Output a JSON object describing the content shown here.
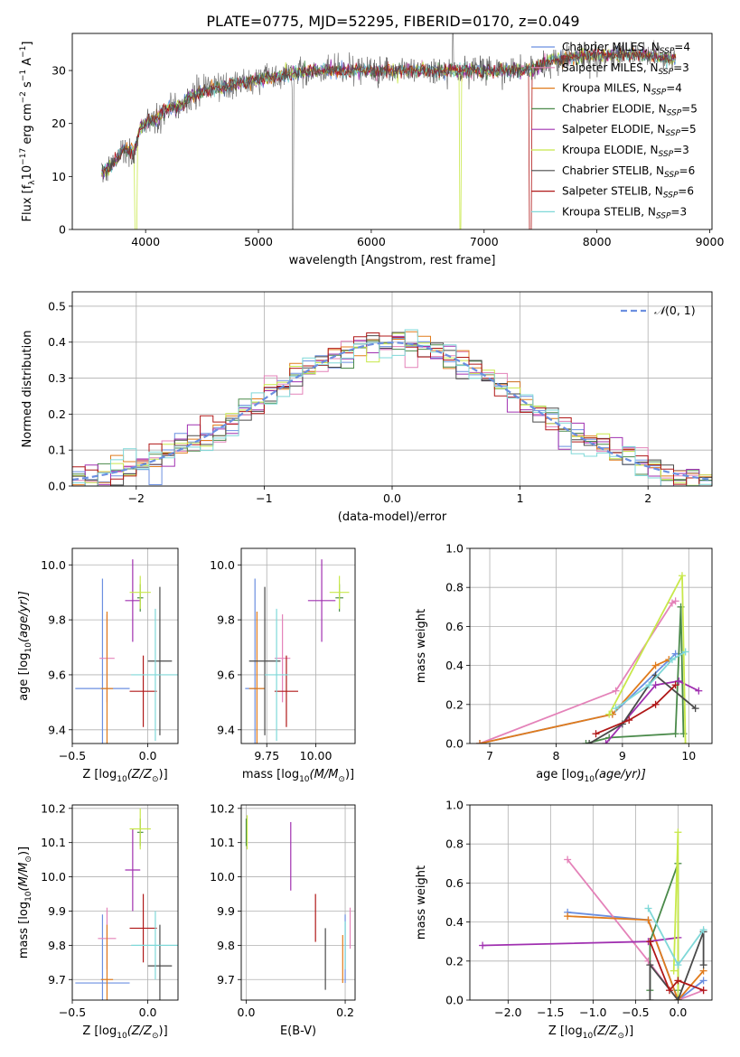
{
  "figure": {
    "title": "PLATE=0775, MJD=52295, FIBERID=0170, z=0.049"
  },
  "series_colors": {
    "Chabrier MILES": "#6b8fe0",
    "Salpeter MILES": "#e482b9",
    "Kroupa MILES": "#e07b1c",
    "Chabrier ELODIE": "#4a8a4a",
    "Salpeter ELODIE": "#a030b0",
    "Kroupa ELODIE": "#c8e84a",
    "Chabrier STELIB": "#4a4a4a",
    "Salpeter STELIB": "#b01818",
    "Kroupa STELIB": "#7fd8d8"
  },
  "chart_data": [
    {
      "id": "spectrum",
      "type": "line",
      "xlabel": "wavelength [Angstrom, rest frame]",
      "ylabel": "Flux [f",
      "xlim": [
        3350,
        9020
      ],
      "ylim": [
        0,
        37
      ],
      "xticks": [
        4000,
        5000,
        6000,
        7000,
        8000,
        9000
      ],
      "yticks": [
        0,
        10,
        20,
        30
      ],
      "grid": false,
      "legend_position": "top-right",
      "legend": [
        {
          "label": "Chabrier MILES, N",
          "n": "4",
          "color": "#6b8fe0"
        },
        {
          "label": "Salpeter MILES, N",
          "n": "3",
          "color": "#e482b9"
        },
        {
          "label": "Kroupa MILES, N",
          "n": "4",
          "color": "#e07b1c"
        },
        {
          "label": "Chabrier ELODIE, N",
          "n": "5",
          "color": "#4a8a4a"
        },
        {
          "label": "Salpeter ELODIE, N",
          "n": "5",
          "color": "#a030b0"
        },
        {
          "label": "Kroupa ELODIE, N",
          "n": "3",
          "color": "#c8e84a"
        },
        {
          "label": "Chabrier STELIB, N",
          "n": "6",
          "color": "#4a4a4a"
        },
        {
          "label": "Salpeter STELIB, N",
          "n": "6",
          "color": "#b01818"
        },
        {
          "label": "Kroupa STELIB, N",
          "n": "3",
          "color": "#7fd8d8"
        }
      ],
      "continuum": [
        [
          3610,
          11
        ],
        [
          3700,
          12
        ],
        [
          3800,
          15
        ],
        [
          3900,
          15
        ],
        [
          3950,
          19
        ],
        [
          4000,
          20
        ],
        [
          4100,
          21
        ],
        [
          4200,
          23
        ],
        [
          4300,
          23
        ],
        [
          4400,
          25
        ],
        [
          4500,
          26
        ],
        [
          4700,
          27
        ],
        [
          4900,
          28
        ],
        [
          5200,
          29
        ],
        [
          5500,
          30
        ],
        [
          6000,
          30
        ],
        [
          6500,
          30
        ],
        [
          7000,
          30
        ],
        [
          7400,
          30
        ],
        [
          7600,
          32
        ],
        [
          8000,
          33
        ],
        [
          8400,
          33
        ],
        [
          8700,
          32
        ]
      ]
    },
    {
      "id": "residual-histogram",
      "type": "histogram",
      "xlabel": "(data-model)/error",
      "ylabel": "Normed distribution",
      "xlim": [
        -2.5,
        2.5
      ],
      "ylim": [
        0,
        0.54
      ],
      "xticks": [
        -2,
        -1,
        0,
        1,
        2
      ],
      "yticks": [
        0.0,
        0.1,
        0.2,
        0.3,
        0.4,
        0.5
      ],
      "grid": true,
      "legend_position": "top-right",
      "legend": [
        {
          "label": "(0, 1)",
          "color": "#6b8fe0",
          "style": "dashed"
        }
      ],
      "bin_width": 0.1,
      "gaussian": {
        "mean": 0,
        "sigma": 1
      }
    },
    {
      "id": "age-vs-Z",
      "type": "errorbar",
      "xlabel": "Z [log",
      "ylabel": "age  [log",
      "xlim": [
        -0.5,
        0.2
      ],
      "ylim": [
        9.35,
        10.06
      ],
      "xticks": [
        -0.5,
        0.0
      ],
      "yticks": [
        9.4,
        9.6,
        9.8,
        10.0
      ],
      "grid": true,
      "points": [
        {
          "series": "Chabrier MILES",
          "x": -0.3,
          "xerr": 0.18,
          "y": 9.55,
          "yerr": 0.4
        },
        {
          "series": "Salpeter MILES",
          "x": -0.27,
          "xerr": 0.05,
          "y": 9.66,
          "yerr": 0.16
        },
        {
          "series": "Kroupa MILES",
          "x": -0.27,
          "xerr": 0.04,
          "y": 9.55,
          "yerr": 0.28
        },
        {
          "series": "Chabrier ELODIE",
          "x": -0.05,
          "xerr": 0.02,
          "y": 9.88,
          "yerr": 0.05
        },
        {
          "series": "Salpeter ELODIE",
          "x": -0.1,
          "xerr": 0.05,
          "y": 9.87,
          "yerr": 0.15
        },
        {
          "series": "Kroupa ELODIE",
          "x": -0.05,
          "xerr": 0.07,
          "y": 9.9,
          "yerr": 0.06
        },
        {
          "series": "Chabrier STELIB",
          "x": 0.08,
          "xerr": 0.08,
          "y": 9.65,
          "yerr": 0.27
        },
        {
          "series": "Salpeter STELIB",
          "x": -0.03,
          "xerr": 0.09,
          "y": 9.54,
          "yerr": 0.13
        },
        {
          "series": "Kroupa STELIB",
          "x": 0.05,
          "xerr": 0.16,
          "y": 9.6,
          "yerr": 0.24
        }
      ]
    },
    {
      "id": "age-vs-mass",
      "type": "errorbar",
      "xlabel": "mass [log",
      "ylabel": "",
      "xlim": [
        9.62,
        10.2
      ],
      "ylim": [
        9.35,
        10.06
      ],
      "xticks": [
        9.75,
        10.0
      ],
      "xticklabels": [
        "9.75",
        "10.00"
      ],
      "yticks": [
        9.4,
        9.6,
        9.8,
        10.0
      ],
      "grid": true,
      "points": [
        {
          "series": "Chabrier MILES",
          "x": 9.69,
          "xerr": 0.05,
          "y": 9.55,
          "yerr": 0.4
        },
        {
          "series": "Salpeter MILES",
          "x": 9.83,
          "xerr": 0.04,
          "y": 9.66,
          "yerr": 0.16
        },
        {
          "series": "Kroupa MILES",
          "x": 9.7,
          "xerr": 0.04,
          "y": 9.55,
          "yerr": 0.28
        },
        {
          "series": "Chabrier ELODIE",
          "x": 10.12,
          "xerr": 0.02,
          "y": 9.88,
          "yerr": 0.05
        },
        {
          "series": "Salpeter ELODIE",
          "x": 10.03,
          "xerr": 0.07,
          "y": 9.87,
          "yerr": 0.15
        },
        {
          "series": "Kroupa ELODIE",
          "x": 10.12,
          "xerr": 0.05,
          "y": 9.9,
          "yerr": 0.06
        },
        {
          "series": "Chabrier STELIB",
          "x": 9.74,
          "xerr": 0.08,
          "y": 9.65,
          "yerr": 0.27
        },
        {
          "series": "Salpeter STELIB",
          "x": 9.85,
          "xerr": 0.06,
          "y": 9.54,
          "yerr": 0.13
        },
        {
          "series": "Kroupa STELIB",
          "x": 9.8,
          "xerr": 0.06,
          "y": 9.6,
          "yerr": 0.24
        }
      ]
    },
    {
      "id": "weight-vs-age",
      "type": "line",
      "xlabel": "age  [log",
      "ylabel": "mass weight",
      "xlim": [
        6.7,
        10.35
      ],
      "ylim": [
        0,
        1.0
      ],
      "xticks": [
        7,
        8,
        9,
        10
      ],
      "yticks": [
        0.0,
        0.2,
        0.4,
        0.6,
        0.8,
        1.0
      ],
      "grid": true,
      "series": [
        {
          "name": "Chabrier MILES",
          "points": [
            [
              6.85,
              0.0
            ],
            [
              8.85,
              0.15
            ],
            [
              9.8,
              0.46
            ],
            [
              9.85,
              0.46
            ]
          ]
        },
        {
          "name": "Salpeter MILES",
          "points": [
            [
              6.85,
              0.0
            ],
            [
              8.9,
              0.27
            ],
            [
              9.75,
              0.72
            ],
            [
              9.8,
              0.73
            ]
          ]
        },
        {
          "name": "Kroupa MILES",
          "points": [
            [
              6.85,
              0.0
            ],
            [
              8.85,
              0.15
            ],
            [
              9.5,
              0.4
            ],
            [
              9.7,
              0.43
            ]
          ]
        },
        {
          "name": "Chabrier ELODIE",
          "points": [
            [
              8.45,
              0.0
            ],
            [
              8.8,
              0.03
            ],
            [
              9.8,
              0.05
            ],
            [
              9.88,
              0.7
            ],
            [
              9.92,
              0.05
            ]
          ]
        },
        {
          "name": "Salpeter ELODIE",
          "points": [
            [
              8.75,
              0.0
            ],
            [
              9.5,
              0.3
            ],
            [
              9.85,
              0.32
            ],
            [
              10.15,
              0.27
            ]
          ]
        },
        {
          "name": "Kroupa ELODIE",
          "points": [
            [
              8.8,
              0.15
            ],
            [
              9.9,
              0.86
            ],
            [
              9.95,
              0.0
            ]
          ]
        },
        {
          "name": "Chabrier STELIB",
          "points": [
            [
              8.5,
              0.0
            ],
            [
              9.0,
              0.1
            ],
            [
              9.5,
              0.35
            ],
            [
              10.1,
              0.18
            ]
          ]
        },
        {
          "name": "Salpeter STELIB",
          "points": [
            [
              8.6,
              0.05
            ],
            [
              9.1,
              0.12
            ],
            [
              9.5,
              0.2
            ],
            [
              9.8,
              0.3
            ]
          ]
        },
        {
          "name": "Kroupa STELIB",
          "points": [
            [
              8.9,
              0.18
            ],
            [
              9.4,
              0.3
            ],
            [
              9.75,
              0.43
            ],
            [
              9.95,
              0.47
            ]
          ]
        }
      ]
    },
    {
      "id": "mass-vs-Z",
      "type": "errorbar",
      "xlabel": "Z [log",
      "ylabel": "mass [log",
      "xlim": [
        -0.5,
        0.2
      ],
      "ylim": [
        9.64,
        10.21
      ],
      "xticks": [
        -0.5,
        0.0
      ],
      "yticks": [
        9.7,
        9.8,
        9.9,
        10.0,
        10.1,
        10.2
      ],
      "grid": true,
      "points": [
        {
          "series": "Chabrier MILES",
          "x": -0.3,
          "xerr": 0.18,
          "y": 9.69,
          "yerr": 0.2
        },
        {
          "series": "Salpeter MILES",
          "x": -0.27,
          "xerr": 0.06,
          "y": 9.82,
          "yerr": 0.09
        },
        {
          "series": "Kroupa MILES",
          "x": -0.27,
          "xerr": 0.04,
          "y": 9.7,
          "yerr": 0.16
        },
        {
          "series": "Chabrier ELODIE",
          "x": -0.05,
          "xerr": 0.02,
          "y": 10.13,
          "yerr": 0.04
        },
        {
          "series": "Salpeter ELODIE",
          "x": -0.1,
          "xerr": 0.05,
          "y": 10.02,
          "yerr": 0.12
        },
        {
          "series": "Kroupa ELODIE",
          "x": -0.05,
          "xerr": 0.07,
          "y": 10.14,
          "yerr": 0.06
        },
        {
          "series": "Chabrier STELIB",
          "x": 0.08,
          "xerr": 0.08,
          "y": 9.74,
          "yerr": 0.12
        },
        {
          "series": "Salpeter STELIB",
          "x": -0.03,
          "xerr": 0.09,
          "y": 9.85,
          "yerr": 0.1
        },
        {
          "series": "Kroupa STELIB",
          "x": 0.05,
          "xerr": 0.16,
          "y": 9.8,
          "yerr": 0.1
        }
      ]
    },
    {
      "id": "mass-vs-EBV",
      "type": "errorbar",
      "xlabel": "E(B-V)",
      "ylabel": "",
      "xlim": [
        -0.01,
        0.22
      ],
      "ylim": [
        9.64,
        10.21
      ],
      "xticks": [
        0.0,
        0.2
      ],
      "yticks": [
        9.7,
        9.8,
        9.9,
        10.0,
        10.1,
        10.2
      ],
      "grid": true,
      "points": [
        {
          "series": "Chabrier MILES",
          "x": 0.2,
          "xerr": 0.0,
          "y": 9.79,
          "yerr": 0.1
        },
        {
          "series": "Salpeter MILES",
          "x": 0.21,
          "xerr": 0.0,
          "y": 9.85,
          "yerr": 0.06
        },
        {
          "series": "Kroupa MILES",
          "x": 0.195,
          "xerr": 0.0,
          "y": 9.76,
          "yerr": 0.07
        },
        {
          "series": "Chabrier ELODIE",
          "x": 0.0,
          "xerr": 0.0,
          "y": 10.13,
          "yerr": 0.04
        },
        {
          "series": "Salpeter ELODIE",
          "x": 0.09,
          "xerr": 0.0,
          "y": 10.06,
          "yerr": 0.1
        },
        {
          "series": "Kroupa ELODIE",
          "x": 0.002,
          "xerr": 0.0,
          "y": 10.13,
          "yerr": 0.05
        },
        {
          "series": "Chabrier STELIB",
          "x": 0.16,
          "xerr": 0.0,
          "y": 9.76,
          "yerr": 0.09
        },
        {
          "series": "Salpeter STELIB",
          "x": 0.14,
          "xerr": 0.0,
          "y": 9.88,
          "yerr": 0.07
        },
        {
          "series": "Kroupa STELIB",
          "x": 0.2,
          "xerr": 0.0,
          "y": 9.8,
          "yerr": 0.07
        }
      ]
    },
    {
      "id": "weight-vs-Z",
      "type": "line",
      "xlabel": "Z [log",
      "ylabel": "mass weight",
      "xlim": [
        -2.45,
        0.4
      ],
      "ylim": [
        0,
        1.0
      ],
      "xticks": [
        -2.0,
        -1.5,
        -1.0,
        -0.5,
        0.0
      ],
      "yticks": [
        0.0,
        0.2,
        0.4,
        0.6,
        0.8,
        1.0
      ],
      "grid": true,
      "series": [
        {
          "name": "Chabrier MILES",
          "points": [
            [
              -1.3,
              0.45
            ],
            [
              -0.35,
              0.41
            ],
            [
              0.0,
              0.0
            ],
            [
              0.3,
              0.1
            ]
          ]
        },
        {
          "name": "Salpeter MILES",
          "points": [
            [
              -1.3,
              0.72
            ],
            [
              -0.35,
              0.2
            ],
            [
              0.0,
              0.0
            ],
            [
              0.3,
              0.05
            ]
          ]
        },
        {
          "name": "Kroupa MILES",
          "points": [
            [
              -1.3,
              0.43
            ],
            [
              -0.35,
              0.41
            ],
            [
              0.0,
              0.0
            ],
            [
              0.3,
              0.15
            ]
          ]
        },
        {
          "name": "Chabrier ELODIE",
          "points": [
            [
              -0.33,
              0.05
            ],
            [
              -0.33,
              0.3
            ],
            [
              0.0,
              0.7
            ],
            [
              0.0,
              0.05
            ]
          ]
        },
        {
          "name": "Salpeter ELODIE",
          "points": [
            [
              -2.3,
              0.28
            ],
            [
              -0.35,
              0.3
            ],
            [
              0.0,
              0.32
            ]
          ]
        },
        {
          "name": "Kroupa ELODIE",
          "points": [
            [
              -0.05,
              0.15
            ],
            [
              0.0,
              0.86
            ],
            [
              0.0,
              0.0
            ]
          ]
        },
        {
          "name": "Chabrier STELIB",
          "points": [
            [
              -0.33,
              0.0
            ],
            [
              -0.33,
              0.18
            ],
            [
              0.0,
              0.0
            ],
            [
              0.3,
              0.35
            ],
            [
              0.3,
              0.18
            ]
          ]
        },
        {
          "name": "Salpeter STELIB",
          "points": [
            [
              -0.33,
              0.3
            ],
            [
              -0.1,
              0.05
            ],
            [
              0.0,
              0.1
            ],
            [
              0.3,
              0.05
            ]
          ]
        },
        {
          "name": "Kroupa STELIB",
          "points": [
            [
              -0.35,
              0.47
            ],
            [
              0.0,
              0.18
            ],
            [
              0.3,
              0.36
            ]
          ]
        }
      ]
    }
  ]
}
